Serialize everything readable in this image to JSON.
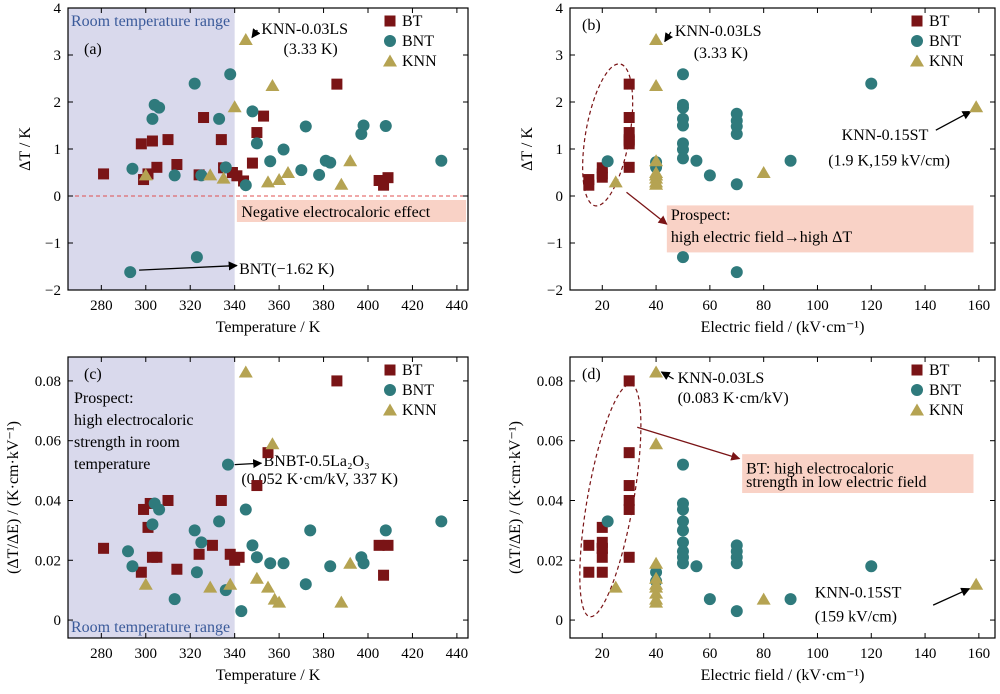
{
  "colors": {
    "BT": "#7a1416",
    "BNT": "#2f7a7c",
    "KNN": "#b5a352",
    "room_band": "#d9d9ec",
    "callout": "#f9d2c6",
    "zero_line": "#e05050",
    "ellipse": "#7a1416"
  },
  "legend_labels": [
    "BT",
    "BNT",
    "KNN"
  ],
  "chart_data": [
    {
      "type": "scatter",
      "panel_label": "(a)",
      "xlabel": "Temperature / K",
      "ylabel": "ΔT / K",
      "xlim": [
        265,
        445
      ],
      "ylim": [
        -2,
        4
      ],
      "xticks": [
        280,
        300,
        320,
        340,
        360,
        380,
        400,
        420,
        440
      ],
      "yticks": [
        -2,
        -1,
        0,
        1,
        2,
        3,
        4
      ],
      "room_temperature_range": [
        265,
        340
      ],
      "room_label": "Room temperature range",
      "zero_line": true,
      "legend": "top-right",
      "series": [
        {
          "name": "BT",
          "marker": "square",
          "x": [
            281,
            298,
            299,
            301,
            303,
            305,
            310,
            314,
            324,
            326,
            334,
            335,
            339,
            341,
            344,
            348,
            350,
            353,
            386,
            405,
            407,
            409
          ],
          "y": [
            0.47,
            1.11,
            0.35,
            0.47,
            1.17,
            0.61,
            1.2,
            0.67,
            0.45,
            1.67,
            1.2,
            0.6,
            0.5,
            0.43,
            0.32,
            0.7,
            1.35,
            1.7,
            2.38,
            0.33,
            0.23,
            0.39
          ]
        },
        {
          "name": "BNT",
          "marker": "circle",
          "x": [
            293,
            294,
            303,
            304,
            306,
            313,
            322,
            323,
            325,
            333,
            336,
            338,
            345,
            348,
            350,
            356,
            362,
            370,
            372,
            378,
            381,
            383,
            397,
            398,
            408,
            433
          ],
          "y": [
            -1.62,
            0.58,
            1.64,
            1.94,
            1.88,
            0.44,
            2.39,
            -1.3,
            0.44,
            1.64,
            0.61,
            2.59,
            0.23,
            1.8,
            1.12,
            0.74,
            0.99,
            0.55,
            1.48,
            0.45,
            0.75,
            0.71,
            1.32,
            1.5,
            1.49,
            0.75
          ]
        },
        {
          "name": "KNN",
          "marker": "triangle",
          "x": [
            300,
            329,
            335,
            340,
            345,
            355,
            357,
            360,
            364,
            388,
            392
          ],
          "y": [
            0.45,
            0.45,
            0.38,
            1.9,
            3.33,
            0.3,
            2.35,
            0.35,
            0.5,
            0.25,
            0.75
          ]
        }
      ],
      "annotations": [
        {
          "text": "KNN-0.03LS",
          "subtext": "(3.33 K)"
        },
        {
          "text": "BNT(−1.62 K)"
        },
        {
          "text": "Negative electrocaloric effect"
        }
      ]
    },
    {
      "type": "scatter",
      "panel_label": "(b)",
      "xlabel": "Electric field / (kV·cm⁻¹)",
      "ylabel": "ΔT / K",
      "xlim": [
        8,
        166
      ],
      "ylim": [
        -2,
        4
      ],
      "xticks": [
        20,
        40,
        60,
        80,
        100,
        120,
        140,
        160
      ],
      "yticks": [
        -2,
        -1,
        0,
        1,
        2,
        3,
        4
      ],
      "legend": "top-right",
      "series": [
        {
          "name": "BT",
          "marker": "square",
          "x": [
            15,
            15,
            20,
            20,
            20,
            30,
            30,
            30,
            30,
            30,
            30,
            30
          ],
          "y": [
            0.23,
            0.35,
            0.4,
            0.47,
            0.6,
            0.61,
            1.11,
            1.2,
            1.35,
            1.67,
            2.38,
            1.17
          ]
        },
        {
          "name": "BNT",
          "marker": "circle",
          "x": [
            22,
            40,
            40,
            50,
            50,
            50,
            50,
            50,
            50,
            50,
            50,
            50,
            55,
            60,
            70,
            70,
            70,
            70,
            70,
            70,
            90,
            120
          ],
          "y": [
            0.74,
            0.61,
            0.72,
            2.59,
            1.94,
            1.88,
            1.64,
            1.5,
            1.12,
            0.99,
            0.8,
            -1.3,
            0.75,
            0.44,
            1.75,
            1.6,
            1.48,
            1.32,
            0.25,
            -1.62,
            0.75,
            2.39
          ]
        },
        {
          "name": "KNN",
          "marker": "triangle",
          "x": [
            25,
            40,
            40,
            40,
            40,
            40,
            40,
            40,
            40,
            40,
            80,
            159
          ],
          "y": [
            0.3,
            3.33,
            2.35,
            0.75,
            0.5,
            0.45,
            0.38,
            0.3,
            0.45,
            0.25,
            0.5,
            1.9
          ]
        }
      ],
      "annotations": [
        {
          "text": "KNN-0.03LS",
          "subtext": "(3.33 K)"
        },
        {
          "text": "KNN-0.15ST",
          "subtext": "(1.9 K,159 kV/cm)"
        },
        {
          "text": "Prospect:",
          "subtext": "high electric field→high ΔT"
        }
      ]
    },
    {
      "type": "scatter",
      "panel_label": "(c)",
      "xlabel": "Temperature / K",
      "ylabel": "(ΔT/ΔE) / (K·cm·kV⁻¹)",
      "xlim": [
        265,
        445
      ],
      "ylim": [
        -0.006,
        0.088
      ],
      "xticks": [
        280,
        300,
        320,
        340,
        360,
        380,
        400,
        420,
        440
      ],
      "yticks": [
        0,
        0.02,
        0.04,
        0.06,
        0.08
      ],
      "room_temperature_range": [
        265,
        340
      ],
      "room_label": "Room temperature range",
      "legend": "top-right",
      "series": [
        {
          "name": "BT",
          "marker": "square",
          "x": [
            281,
            298,
            299,
            301,
            302,
            303,
            305,
            310,
            314,
            324,
            330,
            334,
            338,
            340,
            342,
            350,
            355,
            386,
            405,
            407,
            409
          ],
          "y": [
            0.024,
            0.016,
            0.037,
            0.031,
            0.039,
            0.021,
            0.021,
            0.04,
            0.017,
            0.022,
            0.025,
            0.04,
            0.022,
            0.02,
            0.021,
            0.045,
            0.056,
            0.08,
            0.025,
            0.015,
            0.025
          ]
        },
        {
          "name": "BNT",
          "marker": "circle",
          "x": [
            292,
            294,
            303,
            304,
            306,
            313,
            322,
            323,
            325,
            333,
            336,
            337,
            343,
            345,
            348,
            350,
            356,
            362,
            372,
            374,
            383,
            397,
            398,
            408,
            433
          ],
          "y": [
            0.023,
            0.018,
            0.032,
            0.039,
            0.037,
            0.007,
            0.03,
            0.016,
            0.026,
            0.033,
            0.01,
            0.052,
            0.003,
            0.037,
            0.025,
            0.021,
            0.019,
            0.019,
            0.012,
            0.03,
            0.018,
            0.021,
            0.019,
            0.03,
            0.033
          ]
        },
        {
          "name": "KNN",
          "marker": "triangle",
          "x": [
            300,
            329,
            338,
            345,
            350,
            355,
            357,
            358,
            360,
            388,
            392
          ],
          "y": [
            0.012,
            0.011,
            0.012,
            0.083,
            0.014,
            0.011,
            0.059,
            0.007,
            0.006,
            0.006,
            0.019
          ]
        }
      ],
      "annotations": [
        {
          "text": "Prospect:",
          "subtext": "high electrocaloric",
          "subtext2": "strength in room",
          "subtext3": "temperature"
        },
        {
          "text": "BNBT-0.5La₂O₃",
          "subtext": "(0.052 K·cm/kV, 337 K)"
        }
      ]
    },
    {
      "type": "scatter",
      "panel_label": "(d)",
      "xlabel": "Electric field / (kV·cm⁻¹)",
      "ylabel": "(ΔT/ΔE) / (K·cm·kV⁻¹)",
      "xlim": [
        8,
        166
      ],
      "ylim": [
        -0.006,
        0.088
      ],
      "xticks": [
        20,
        40,
        60,
        80,
        100,
        120,
        140,
        160
      ],
      "yticks": [
        0,
        0.02,
        0.04,
        0.06,
        0.08
      ],
      "legend": "top-right",
      "series": [
        {
          "name": "BT",
          "marker": "square",
          "x": [
            15,
            15,
            20,
            20,
            20,
            20,
            20,
            20,
            30,
            30,
            30,
            30,
            30,
            30
          ],
          "y": [
            0.025,
            0.016,
            0.021,
            0.024,
            0.026,
            0.016,
            0.031,
            0.024,
            0.08,
            0.056,
            0.045,
            0.04,
            0.037,
            0.021
          ]
        },
        {
          "name": "BNT",
          "marker": "circle",
          "x": [
            22,
            40,
            40,
            50,
            50,
            50,
            50,
            50,
            50,
            50,
            50,
            50,
            55,
            60,
            70,
            70,
            70,
            70,
            70,
            90,
            120
          ],
          "y": [
            0.033,
            0.016,
            0.013,
            0.052,
            0.039,
            0.037,
            0.033,
            0.03,
            0.026,
            0.023,
            0.021,
            0.019,
            0.018,
            0.007,
            0.025,
            0.023,
            0.021,
            0.019,
            0.003,
            0.007,
            0.018
          ]
        },
        {
          "name": "KNN",
          "marker": "triangle",
          "x": [
            25,
            40,
            40,
            40,
            40,
            40,
            40,
            40,
            40,
            40,
            80,
            159
          ],
          "y": [
            0.011,
            0.083,
            0.059,
            0.019,
            0.014,
            0.012,
            0.011,
            0.009,
            0.007,
            0.006,
            0.007,
            0.012
          ]
        }
      ],
      "annotations": [
        {
          "text": "KNN-0.03LS",
          "subtext": "(0.083 K·cm/kV)"
        },
        {
          "text": "BT: high electrocaloric",
          "subtext": "strength in low electric field"
        },
        {
          "text": "KNN-0.15ST",
          "subtext": "(159 kV/cm)"
        }
      ]
    }
  ]
}
